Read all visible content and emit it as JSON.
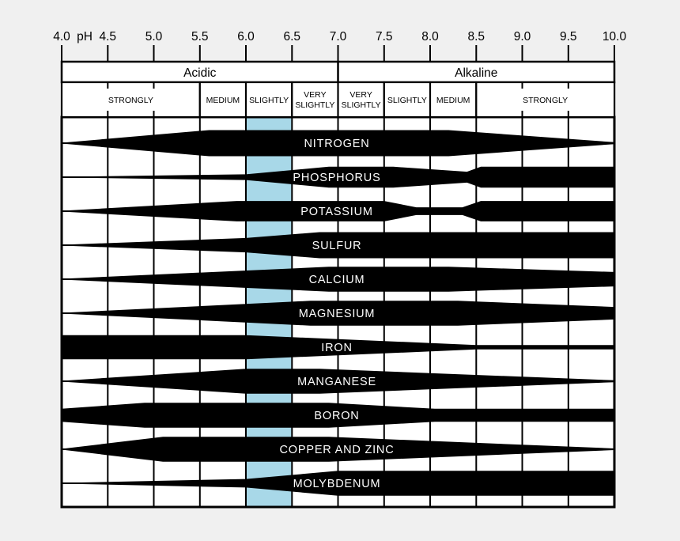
{
  "colors": {
    "page_bg": "#f0f0f0",
    "chart_bg": "#ffffff",
    "line": "#000000",
    "band_fill": "#000000",
    "band_label": "#ffffff",
    "highlight": "#a8d8e8",
    "text": "#000000"
  },
  "chart_data": {
    "type": "area",
    "title": "",
    "xlabel": "pH",
    "grid": true,
    "x_axis": {
      "label": "pH",
      "min": 4.0,
      "max": 10.0,
      "tick_step": 0.5,
      "tick_labels": [
        "4.0",
        "4.5",
        "5.0",
        "5.5",
        "6.0",
        "6.5",
        "7.0",
        "7.5",
        "8.0",
        "8.5",
        "9.0",
        "9.5",
        "10.0"
      ]
    },
    "zones": [
      {
        "label": "Acidic",
        "from": 4.0,
        "to": 7.0
      },
      {
        "label": "Alkaline",
        "from": 7.0,
        "to": 10.0
      }
    ],
    "intensity_bands": [
      {
        "label": "STRONGLY",
        "from": 4.0,
        "to": 5.5
      },
      {
        "label": "MEDIUM",
        "from": 5.5,
        "to": 6.0
      },
      {
        "label": "SLIGHTLY",
        "from": 6.0,
        "to": 6.5
      },
      {
        "label": "VERY SLIGHTLY",
        "from": 6.5,
        "to": 7.0
      },
      {
        "label": "VERY SLIGHTLY",
        "from": 7.0,
        "to": 7.5
      },
      {
        "label": "SLIGHTLY",
        "from": 7.5,
        "to": 8.0
      },
      {
        "label": "MEDIUM",
        "from": 8.0,
        "to": 8.5
      },
      {
        "label": "STRONGLY",
        "from": 8.5,
        "to": 10.0
      }
    ],
    "highlight_band": {
      "from": 6.0,
      "to": 6.5
    },
    "series": [
      {
        "name": "NITROGEN",
        "availability": [
          [
            4.0,
            0.03
          ],
          [
            5.6,
            1.0
          ],
          [
            8.2,
            1.0
          ],
          [
            10.0,
            0.07
          ]
        ]
      },
      {
        "name": "PHOSPHORUS",
        "availability": [
          [
            4.0,
            0.03
          ],
          [
            6.0,
            0.22
          ],
          [
            6.9,
            0.8
          ],
          [
            7.6,
            0.8
          ],
          [
            8.4,
            0.42
          ],
          [
            8.55,
            0.8
          ],
          [
            10.0,
            0.8
          ]
        ]
      },
      {
        "name": "POTASSIUM",
        "availability": [
          [
            4.0,
            0.03
          ],
          [
            5.9,
            0.78
          ],
          [
            7.5,
            0.78
          ],
          [
            7.85,
            0.3
          ],
          [
            8.35,
            0.3
          ],
          [
            8.55,
            0.78
          ],
          [
            10.0,
            0.78
          ]
        ]
      },
      {
        "name": "SULFUR",
        "availability": [
          [
            4.0,
            0.03
          ],
          [
            6.0,
            0.55
          ],
          [
            6.8,
            1.0
          ],
          [
            10.0,
            1.0
          ]
        ]
      },
      {
        "name": "CALCIUM",
        "availability": [
          [
            4.0,
            0.03
          ],
          [
            6.9,
            0.95
          ],
          [
            8.2,
            0.95
          ],
          [
            10.0,
            0.55
          ]
        ]
      },
      {
        "name": "MAGNESIUM",
        "availability": [
          [
            4.0,
            0.03
          ],
          [
            6.7,
            0.95
          ],
          [
            8.3,
            0.95
          ],
          [
            10.0,
            0.48
          ]
        ]
      },
      {
        "name": "IRON",
        "availability": [
          [
            4.0,
            0.92
          ],
          [
            6.0,
            0.92
          ],
          [
            8.5,
            0.17
          ],
          [
            10.0,
            0.17
          ]
        ]
      },
      {
        "name": "MANGANESE",
        "availability": [
          [
            4.0,
            0.03
          ],
          [
            6.0,
            0.95
          ],
          [
            6.8,
            0.95
          ],
          [
            10.0,
            0.07
          ]
        ]
      },
      {
        "name": "BORON",
        "availability": [
          [
            4.0,
            0.5
          ],
          [
            4.9,
            0.95
          ],
          [
            6.9,
            0.95
          ],
          [
            8.05,
            0.5
          ],
          [
            10.0,
            0.5
          ]
        ]
      },
      {
        "name": "COPPER AND ZINC",
        "availability": [
          [
            4.0,
            0.03
          ],
          [
            5.1,
            0.95
          ],
          [
            6.9,
            0.95
          ],
          [
            10.0,
            0.06
          ]
        ]
      },
      {
        "name": "MOLYBDENUM",
        "availability": [
          [
            4.0,
            0.03
          ],
          [
            6.0,
            0.33
          ],
          [
            7.0,
            0.95
          ],
          [
            10.0,
            0.95
          ]
        ]
      }
    ]
  }
}
